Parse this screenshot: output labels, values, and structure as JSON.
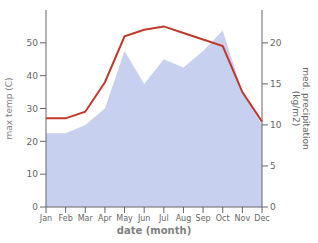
{
  "chart_data": {
    "type": "line",
    "categories": [
      "Jan",
      "Feb",
      "Mar",
      "Apr",
      "May",
      "Jun",
      "Jul",
      "Aug",
      "Sep",
      "Oct",
      "Nov",
      "Dec"
    ],
    "series": [
      {
        "type": "area",
        "axis": "y2",
        "color": "#c8d0f0",
        "values": [
          9.0,
          9.0,
          10.0,
          12.0,
          19.0,
          15.0,
          18.0,
          17.0,
          19.0,
          21.5,
          14.0,
          10.0
        ]
      },
      {
        "type": "line",
        "color": "#c0392b",
        "values": [
          27,
          27,
          29,
          38,
          52,
          54,
          55,
          53,
          51,
          49,
          35,
          26
        ]
      }
    ],
    "xlabel": "date (month)",
    "ylabel": "max temp (C)",
    "y2label": "med. precipitation\n(kg/m2)",
    "ylim": [
      0,
      60
    ],
    "yticks": [
      0,
      10,
      20,
      30,
      40,
      50
    ],
    "y2lim": [
      0,
      24
    ],
    "y2ticks": [
      0,
      5,
      10,
      15,
      20
    ],
    "grid": false
  }
}
